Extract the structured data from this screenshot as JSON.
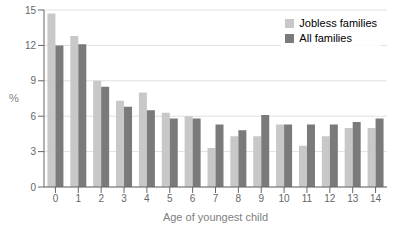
{
  "chart_data": {
    "type": "bar",
    "categories": [
      0,
      1,
      2,
      3,
      4,
      5,
      6,
      7,
      8,
      9,
      10,
      11,
      12,
      13,
      14
    ],
    "series": [
      {
        "name": "Jobless families",
        "color": "#c8c8c8",
        "values": [
          14.7,
          12.8,
          9.0,
          7.3,
          8.0,
          6.3,
          6.0,
          3.3,
          4.3,
          4.3,
          5.3,
          3.5,
          4.3,
          5.0,
          5.0
        ]
      },
      {
        "name": "All families",
        "color": "#7a7a7a",
        "values": [
          12.0,
          12.1,
          8.5,
          6.8,
          6.5,
          5.8,
          5.8,
          5.3,
          4.8,
          6.1,
          5.3,
          5.3,
          5.3,
          5.5,
          5.8
        ]
      }
    ],
    "xlabel": "Age of youngest child",
    "ylabel": "%",
    "ylim": [
      0,
      15
    ],
    "yticks": [
      0,
      3,
      6,
      9,
      12,
      15
    ],
    "grid": true,
    "legend": "upper right"
  }
}
